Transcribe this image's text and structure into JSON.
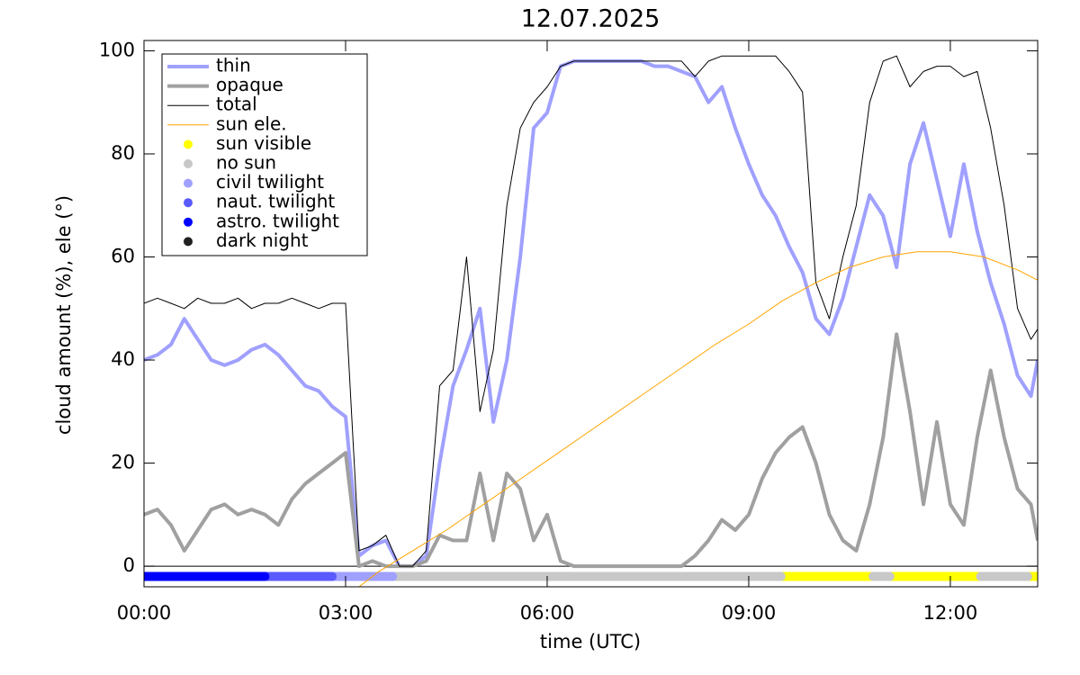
{
  "chart_data": {
    "type": "line",
    "title": "12.07.2025",
    "x_label": "time (UTC)",
    "y_label": "cloud amount (%), ele (°)",
    "xlim": [
      0,
      13.3
    ],
    "ylim": [
      -4,
      102
    ],
    "xticks": [
      {
        "value": 0,
        "label": "00:00"
      },
      {
        "value": 3,
        "label": "03:00"
      },
      {
        "value": 6,
        "label": "06:00"
      },
      {
        "value": 9,
        "label": "09:00"
      },
      {
        "value": 12,
        "label": "12:00"
      }
    ],
    "yticks": [
      0,
      20,
      40,
      60,
      80,
      100
    ],
    "grid": false,
    "legend": "upper-left",
    "x": [
      0,
      0.2,
      0.4,
      0.6,
      0.8,
      1,
      1.2,
      1.4,
      1.6,
      1.8,
      2,
      2.2,
      2.4,
      2.6,
      2.8,
      3,
      3.2,
      3.4,
      3.6,
      3.8,
      4,
      4.2,
      4.4,
      4.6,
      4.8,
      5,
      5.2,
      5.4,
      5.6,
      5.8,
      6,
      6.2,
      6.4,
      6.6,
      6.8,
      7,
      7.2,
      7.4,
      7.6,
      7.8,
      8,
      8.2,
      8.4,
      8.6,
      8.8,
      9,
      9.2,
      9.4,
      9.6,
      9.8,
      10,
      10.2,
      10.4,
      10.6,
      10.8,
      11,
      11.2,
      11.4,
      11.6,
      11.8,
      12,
      12.2,
      12.4,
      12.6,
      12.8,
      13,
      13.2,
      13.3
    ],
    "series": [
      {
        "name": "thin",
        "color": "#a0a0ff",
        "width": 4,
        "values": [
          40,
          41,
          43,
          48,
          44,
          40,
          39,
          40,
          42,
          43,
          41,
          38,
          35,
          34,
          31,
          29,
          2,
          4,
          5,
          0,
          0,
          2,
          20,
          35,
          42,
          50,
          28,
          40,
          60,
          85,
          88,
          97,
          98,
          98,
          98,
          98,
          98,
          98,
          97,
          97,
          96,
          95,
          90,
          93,
          85,
          78,
          72,
          68,
          62,
          57,
          48,
          45,
          52,
          62,
          72,
          68,
          58,
          78,
          86,
          75,
          64,
          78,
          65,
          55,
          47,
          37,
          33,
          40
        ]
      },
      {
        "name": "opaque",
        "color": "#a0a0a0",
        "width": 4,
        "values": [
          10,
          11,
          8,
          3,
          7,
          11,
          12,
          10,
          11,
          10,
          8,
          13,
          16,
          18,
          20,
          22,
          0,
          1,
          0,
          0,
          0,
          1,
          6,
          5,
          5,
          18,
          5,
          18,
          15,
          5,
          10,
          1,
          0,
          0,
          0,
          0,
          0,
          0,
          0,
          0,
          0,
          2,
          5,
          9,
          7,
          10,
          17,
          22,
          25,
          27,
          20,
          10,
          5,
          3,
          12,
          25,
          45,
          30,
          12,
          28,
          12,
          8,
          25,
          38,
          25,
          15,
          12,
          5
        ]
      },
      {
        "name": "total",
        "color": "#000000",
        "width": 1,
        "values": [
          51,
          52,
          51,
          50,
          52,
          51,
          51,
          52,
          50,
          51,
          51,
          52,
          51,
          50,
          51,
          51,
          3,
          4,
          6,
          0,
          0,
          3,
          35,
          38,
          60,
          30,
          42,
          70,
          85,
          90,
          93,
          97,
          98,
          98,
          98,
          98,
          98,
          98,
          98,
          98,
          98,
          95,
          98,
          99,
          99,
          99,
          99,
          99,
          96,
          92,
          55,
          48,
          60,
          70,
          90,
          98,
          99,
          93,
          96,
          97,
          97,
          95,
          96,
          85,
          70,
          50,
          44,
          46
        ]
      },
      {
        "name": "sun ele.",
        "color": "#ffa500",
        "width": 1,
        "x": [
          3,
          3.5,
          4,
          4.5,
          5,
          5.5,
          6,
          6.5,
          7,
          7.5,
          8,
          8.5,
          9,
          9.5,
          10,
          10.5,
          11,
          11.5,
          12,
          12.5,
          13,
          13.3
        ],
        "values": [
          -6,
          -1,
          3,
          7,
          11.5,
          16,
          20.5,
          25,
          29.5,
          34,
          38.5,
          43,
          47,
          51.5,
          55,
          58,
          60,
          61,
          61,
          60,
          57.5,
          55.5
        ]
      }
    ],
    "markers": [
      {
        "name": "sun visible",
        "color": "#ffff00",
        "y": -2,
        "segments": [
          [
            9.48,
            10.85
          ],
          [
            11.1,
            12.45
          ],
          [
            13.15,
            13.3
          ]
        ]
      },
      {
        "name": "no sun",
        "color": "#c8c8c8",
        "y": -2,
        "segments": [
          [
            3.7,
            9.48
          ],
          [
            10.85,
            11.1
          ],
          [
            12.45,
            13.15
          ]
        ]
      },
      {
        "name": "civil twilight",
        "color": "#a0a0ff",
        "y": -2,
        "segments": [
          [
            2.8,
            3.7
          ]
        ]
      },
      {
        "name": "naut. twilight",
        "color": "#5a5aff",
        "y": -2,
        "segments": [
          [
            1.8,
            2.8
          ]
        ]
      },
      {
        "name": "astro. twilight",
        "color": "#0000ff",
        "y": -2,
        "segments": [
          [
            0,
            1.8
          ]
        ]
      },
      {
        "name": "dark night",
        "color": "#202020",
        "y": -2,
        "segments": []
      }
    ]
  }
}
